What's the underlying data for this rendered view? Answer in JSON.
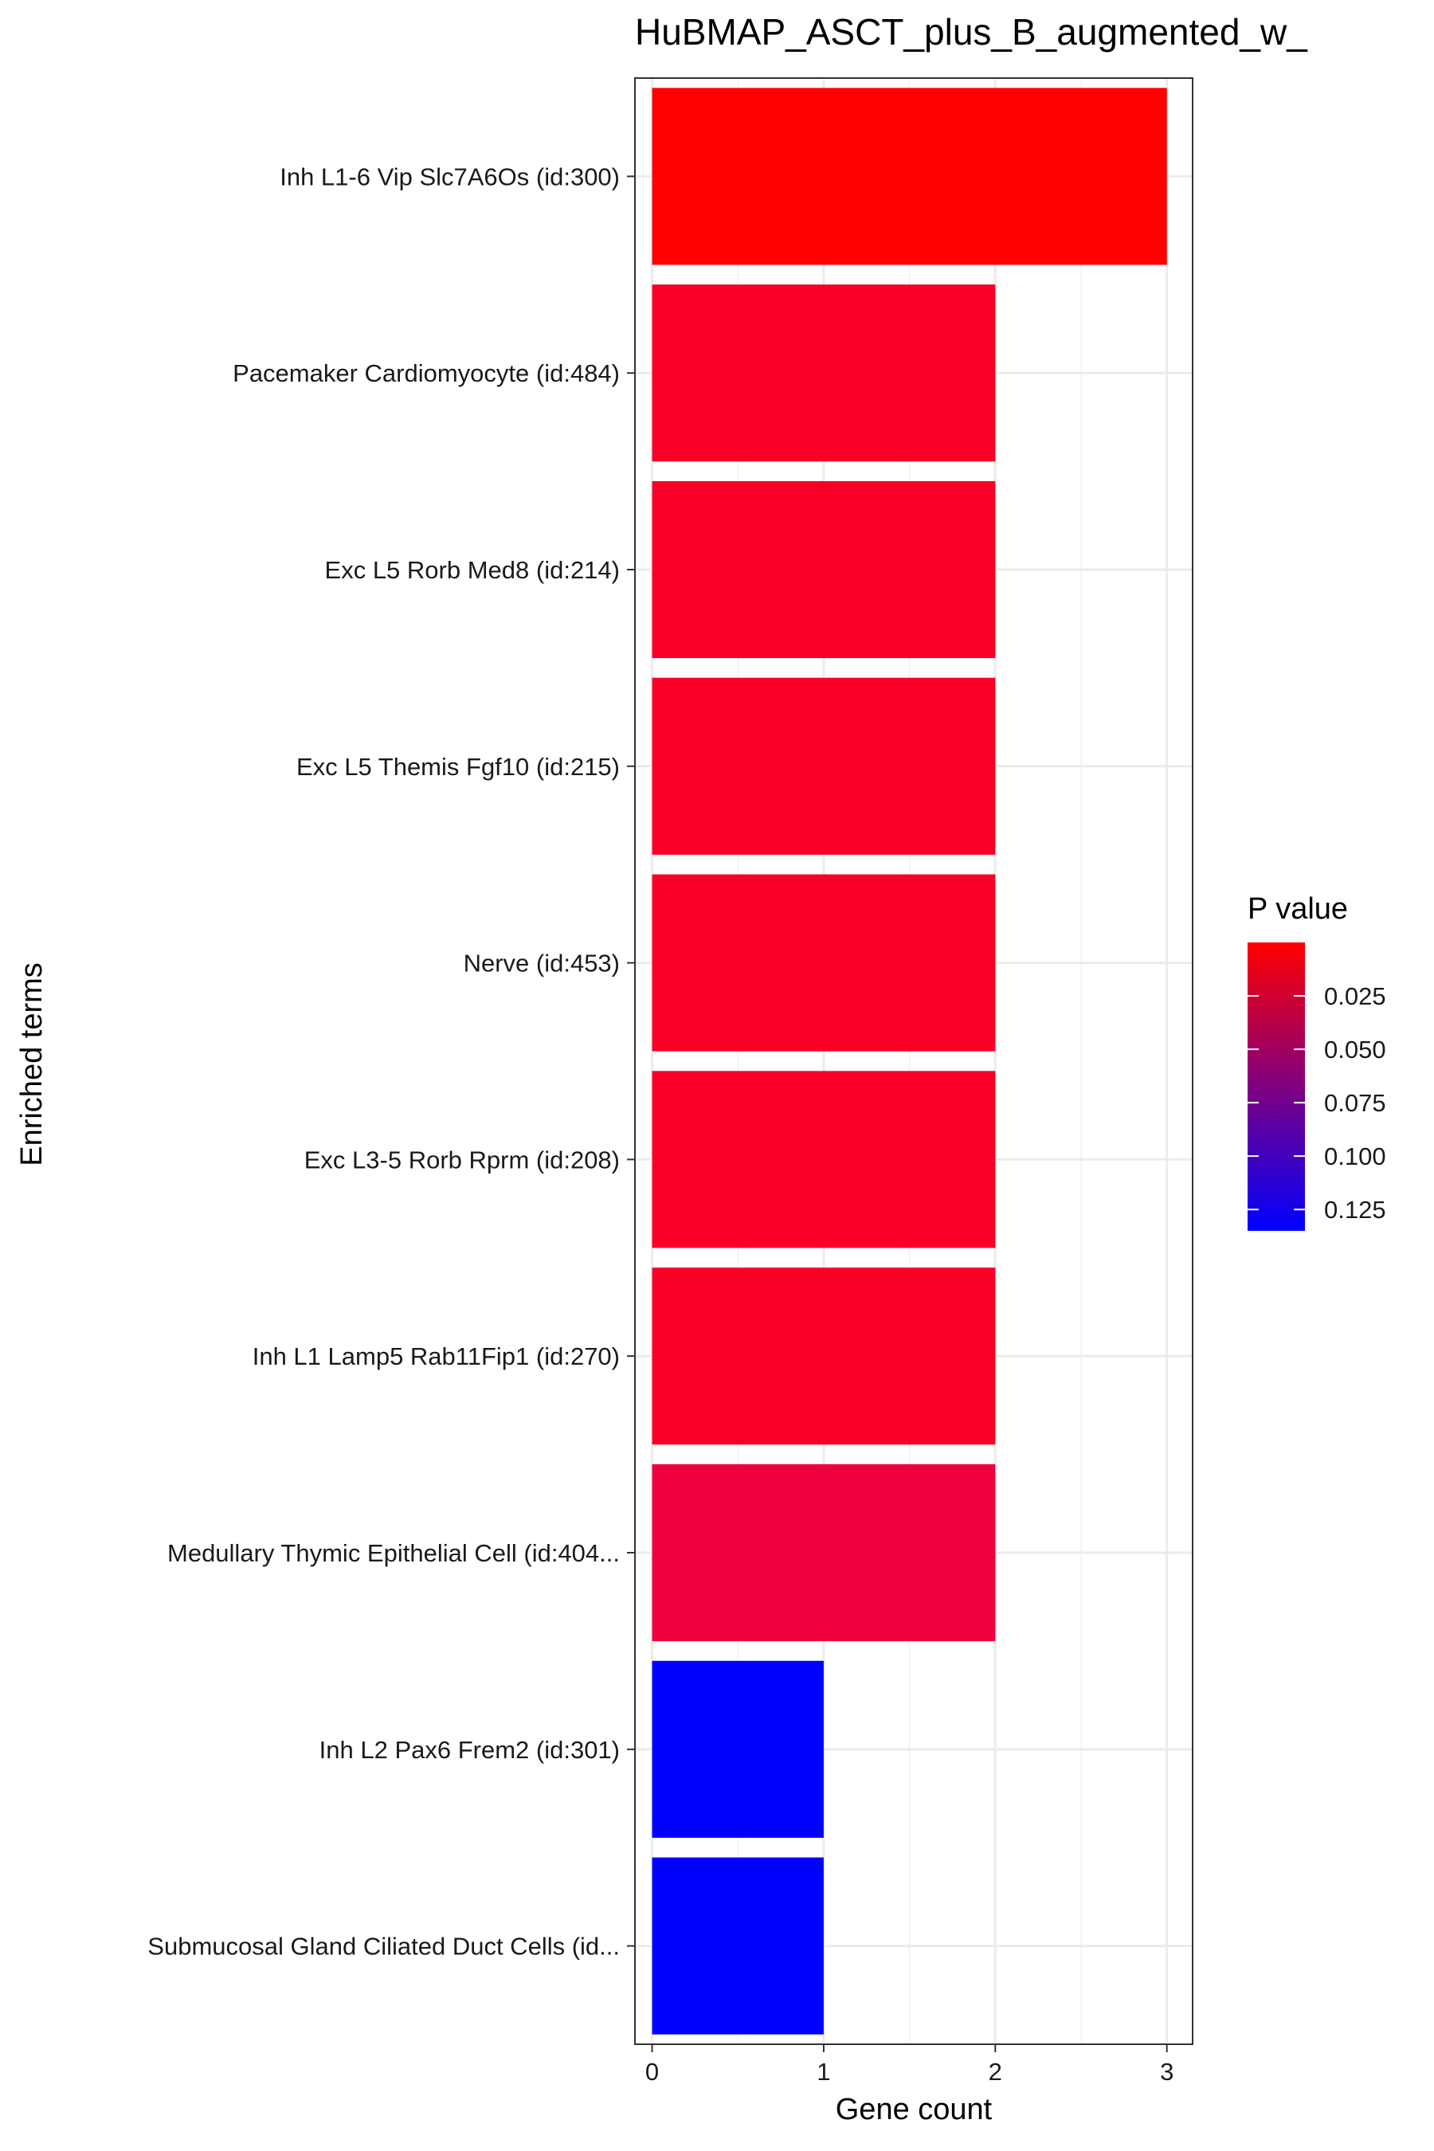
{
  "chart_data": {
    "type": "bar",
    "orientation": "horizontal",
    "title": "HuBMAP_ASCT_plus_B_augmented_w_",
    "xlabel": "Gene count",
    "ylabel": "Enriched terms",
    "xlim": [
      -0.1,
      3.15
    ],
    "xticks": [
      0,
      1,
      2,
      3
    ],
    "x_tick_labels": [
      "0",
      "1",
      "2",
      "3"
    ],
    "grid": true,
    "categories": [
      "Inh L1-6 Vip Slc7A6Os (id:300)",
      "Pacemaker Cardiomyocyte (id:484)",
      "Exc L5 Rorb Med8 (id:214)",
      "Exc L5 Themis Fgf10 (id:215)",
      "Nerve (id:453)",
      "Exc L3-5 Rorb Rprm (id:208)",
      "Inh L1 Lamp5 Rab11Fip1 (id:270)",
      "Medullary Thymic Epithelial Cell (id:404...",
      "Inh L2 Pax6 Frem2 (id:301)",
      "Submucosal Gland Ciliated Duct Cells (id..."
    ],
    "values": [
      3,
      2,
      2,
      2,
      2,
      2,
      2,
      2,
      1,
      1
    ],
    "p_values": [
      0.004,
      0.013,
      0.013,
      0.013,
      0.013,
      0.013,
      0.013,
      0.02,
      0.135,
      0.135
    ],
    "colors": [
      "#ff0000",
      "#f90026",
      "#f90026",
      "#f90026",
      "#f90026",
      "#f90026",
      "#f90026",
      "#ef003f",
      "#0000ff",
      "#0000ff"
    ],
    "legend": {
      "title": "P value",
      "position": "right",
      "tick_labels": [
        "0.025",
        "0.050",
        "0.075",
        "0.100",
        "0.125"
      ],
      "tick_values": [
        0.025,
        0.05,
        0.075,
        0.1,
        0.125
      ],
      "range": [
        0.0,
        0.135
      ],
      "low_color": "#ff0000",
      "high_color": "#0000ff"
    }
  }
}
